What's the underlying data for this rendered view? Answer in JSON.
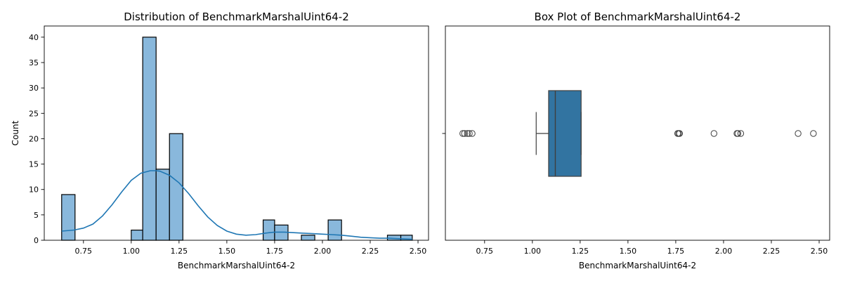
{
  "chart_data": [
    {
      "type": "histogram",
      "title": "Distribution of BenchmarkMarshalUint64-2",
      "xlabel": "BenchmarkMarshalUint64-2",
      "ylabel": "Count",
      "xlim": [
        0.545,
        2.555
      ],
      "ylim": [
        0,
        42.2
      ],
      "xticks": [
        "0.75",
        "1.00",
        "1.25",
        "1.50",
        "1.75",
        "2.00",
        "2.25",
        "2.50"
      ],
      "yticks": [
        "0",
        "5",
        "10",
        "15",
        "20",
        "25",
        "30",
        "35",
        "40"
      ],
      "bar_color": "#89b8dc",
      "kde_color": "#1f77b4",
      "bins": [
        {
          "x0": 0.636,
          "x1": 0.706,
          "count": 9
        },
        {
          "x0": 1.0,
          "x1": 1.06,
          "count": 2
        },
        {
          "x0": 1.06,
          "x1": 1.13,
          "count": 40
        },
        {
          "x0": 1.13,
          "x1": 1.2,
          "count": 14
        },
        {
          "x0": 1.2,
          "x1": 1.27,
          "count": 21
        },
        {
          "x0": 1.69,
          "x1": 1.75,
          "count": 4
        },
        {
          "x0": 1.75,
          "x1": 1.82,
          "count": 3
        },
        {
          "x0": 1.89,
          "x1": 1.96,
          "count": 1
        },
        {
          "x0": 2.03,
          "x1": 2.1,
          "count": 4
        },
        {
          "x0": 2.34,
          "x1": 2.41,
          "count": 1
        },
        {
          "x0": 2.41,
          "x1": 2.47,
          "count": 1
        }
      ],
      "kde": {
        "x": [
          0.636,
          0.7,
          0.75,
          0.8,
          0.85,
          0.9,
          0.95,
          1.0,
          1.05,
          1.1,
          1.13,
          1.15,
          1.2,
          1.25,
          1.3,
          1.35,
          1.4,
          1.45,
          1.5,
          1.55,
          1.6,
          1.65,
          1.7,
          1.75,
          1.8,
          1.85,
          1.9,
          1.95,
          2.0,
          2.05,
          2.1,
          2.15,
          2.2,
          2.25,
          2.3,
          2.35,
          2.4,
          2.47
        ],
        "y": [
          1.8,
          2.0,
          2.4,
          3.2,
          4.8,
          7.0,
          9.5,
          11.8,
          13.2,
          13.7,
          13.7,
          13.6,
          12.8,
          11.3,
          9.2,
          6.8,
          4.6,
          2.9,
          1.8,
          1.2,
          1.0,
          1.1,
          1.4,
          1.6,
          1.6,
          1.5,
          1.4,
          1.3,
          1.2,
          1.1,
          1.0,
          0.8,
          0.6,
          0.5,
          0.4,
          0.4,
          0.3,
          0.2
        ]
      }
    },
    {
      "type": "box",
      "title": "Box Plot of BenchmarkMarshalUint64-2",
      "xlabel": "BenchmarkMarshalUint64-2",
      "xlim": [
        0.545,
        2.555
      ],
      "xticks": [
        "0.75",
        "1.00",
        "1.25",
        "1.50",
        "1.75",
        "2.00",
        "2.25",
        "2.50"
      ],
      "box_color": "#3274a1",
      "stats": {
        "whisker_low": 1.02,
        "q1": 1.085,
        "median": 1.12,
        "q3": 1.255,
        "whisker_high": 1.255
      },
      "outliers": [
        0.636,
        0.645,
        0.66,
        0.67,
        0.685,
        1.76,
        1.765,
        1.77,
        1.95,
        2.07,
        2.075,
        2.09,
        2.39,
        2.47
      ]
    }
  ]
}
